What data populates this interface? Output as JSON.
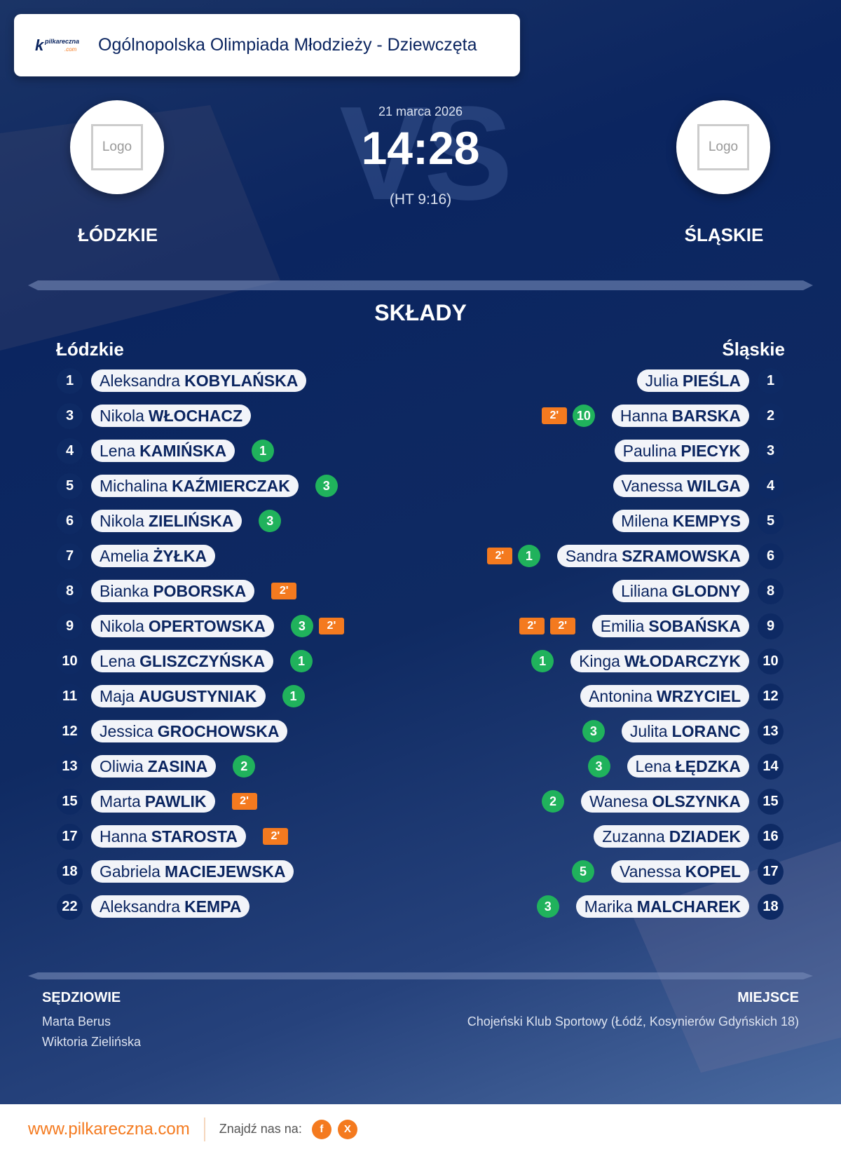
{
  "header": {
    "title": "Ogólnopolska Olimpiada Młodzieży - Dziewczęta",
    "brand": "pilkareczna.com"
  },
  "match": {
    "date": "21 marca 2026",
    "score": "14:28",
    "halftime": "(HT 9:16)",
    "vs": "VS",
    "home": {
      "name": "ŁÓDZKIE",
      "logo": "Logo"
    },
    "away": {
      "name": "ŚLĄSKIE",
      "logo": "Logo"
    }
  },
  "lineups": {
    "title": "SKŁADY",
    "home_label": "Łódzkie",
    "away_label": "Śląskie",
    "home": [
      {
        "num": "1",
        "first": "Aleksandra",
        "last": "KOBYLAŃSKA",
        "goals": null,
        "susp": []
      },
      {
        "num": "3",
        "first": "Nikola",
        "last": "WŁOCHACZ",
        "goals": null,
        "susp": []
      },
      {
        "num": "4",
        "first": "Lena",
        "last": "KAMIŃSKA",
        "goals": "1",
        "susp": []
      },
      {
        "num": "5",
        "first": "Michalina",
        "last": "KAŹMIERCZAK",
        "goals": "3",
        "susp": []
      },
      {
        "num": "6",
        "first": "Nikola",
        "last": "ZIELIŃSKA",
        "goals": "3",
        "susp": []
      },
      {
        "num": "7",
        "first": "Amelia",
        "last": "ŻYŁKA",
        "goals": null,
        "susp": []
      },
      {
        "num": "8",
        "first": "Bianka",
        "last": "POBORSKA",
        "goals": null,
        "susp": [
          "2'"
        ]
      },
      {
        "num": "9",
        "first": "Nikola",
        "last": "OPERTOWSKA",
        "goals": "3",
        "susp": [
          "2'"
        ]
      },
      {
        "num": "10",
        "first": "Lena",
        "last": "GLISZCZYŃSKA",
        "goals": "1",
        "susp": []
      },
      {
        "num": "11",
        "first": "Maja",
        "last": "AUGUSTYNIAK",
        "goals": "1",
        "susp": []
      },
      {
        "num": "12",
        "first": "Jessica",
        "last": "GROCHOWSKA",
        "goals": null,
        "susp": []
      },
      {
        "num": "13",
        "first": "Oliwia",
        "last": "ZASINA",
        "goals": "2",
        "susp": []
      },
      {
        "num": "15",
        "first": "Marta",
        "last": "PAWLIK",
        "goals": null,
        "susp": [
          "2'"
        ]
      },
      {
        "num": "17",
        "first": "Hanna",
        "last": "STAROSTA",
        "goals": null,
        "susp": [
          "2'"
        ]
      },
      {
        "num": "18",
        "first": "Gabriela",
        "last": "MACIEJEWSKA",
        "goals": null,
        "susp": []
      },
      {
        "num": "22",
        "first": "Aleksandra",
        "last": "KEMPA",
        "goals": null,
        "susp": []
      }
    ],
    "away": [
      {
        "num": "1",
        "first": "Julia",
        "last": "PIEŚLA",
        "goals": null,
        "susp": []
      },
      {
        "num": "2",
        "first": "Hanna",
        "last": "BARSKA",
        "goals": "10",
        "susp": [
          "2'"
        ]
      },
      {
        "num": "3",
        "first": "Paulina",
        "last": "PIECYK",
        "goals": null,
        "susp": []
      },
      {
        "num": "4",
        "first": "Vanessa",
        "last": "WILGA",
        "goals": null,
        "susp": []
      },
      {
        "num": "5",
        "first": "Milena",
        "last": "KEMPYS",
        "goals": null,
        "susp": []
      },
      {
        "num": "6",
        "first": "Sandra",
        "last": "SZRAMOWSKA",
        "goals": "1",
        "susp": [
          "2'"
        ]
      },
      {
        "num": "8",
        "first": "Liliana",
        "last": "GLODNY",
        "goals": null,
        "susp": []
      },
      {
        "num": "9",
        "first": "Emilia",
        "last": "SOBAŃSKA",
        "goals": null,
        "susp": [
          "2'",
          "2'"
        ]
      },
      {
        "num": "10",
        "first": "Kinga",
        "last": "WŁODARCZYK",
        "goals": "1",
        "susp": []
      },
      {
        "num": "12",
        "first": "Antonina",
        "last": "WRZYCIEL",
        "goals": null,
        "susp": []
      },
      {
        "num": "13",
        "first": "Julita",
        "last": "LORANC",
        "goals": "3",
        "susp": []
      },
      {
        "num": "14",
        "first": "Lena",
        "last": "ŁĘDZKA",
        "goals": "3",
        "susp": []
      },
      {
        "num": "15",
        "first": "Wanesa",
        "last": "OLSZYNKA",
        "goals": "2",
        "susp": []
      },
      {
        "num": "16",
        "first": "Zuzanna",
        "last": "DZIADEK",
        "goals": null,
        "susp": []
      },
      {
        "num": "17",
        "first": "Vanessa",
        "last": "KOPEL",
        "goals": "5",
        "susp": []
      },
      {
        "num": "18",
        "first": "Marika",
        "last": "MALCHAREK",
        "goals": "3",
        "susp": []
      }
    ]
  },
  "referees": {
    "label": "SĘDZIOWIE",
    "names": [
      "Marta Berus",
      "Wiktoria Zielińska"
    ]
  },
  "venue": {
    "label": "MIEJSCE",
    "text": "Chojeński Klub Sportowy (Łódź, Kosynierów Gdyńskich 18)"
  },
  "footer": {
    "site": "www.pilkareczna.com",
    "find": "Znajdź nas na:",
    "social": [
      {
        "icon": "facebook-icon",
        "glyph": "f"
      },
      {
        "icon": "x-icon",
        "glyph": "X"
      }
    ]
  },
  "colors": {
    "navy": "#0b2560",
    "goal": "#20b25c",
    "suspension": "#f47a1f"
  }
}
